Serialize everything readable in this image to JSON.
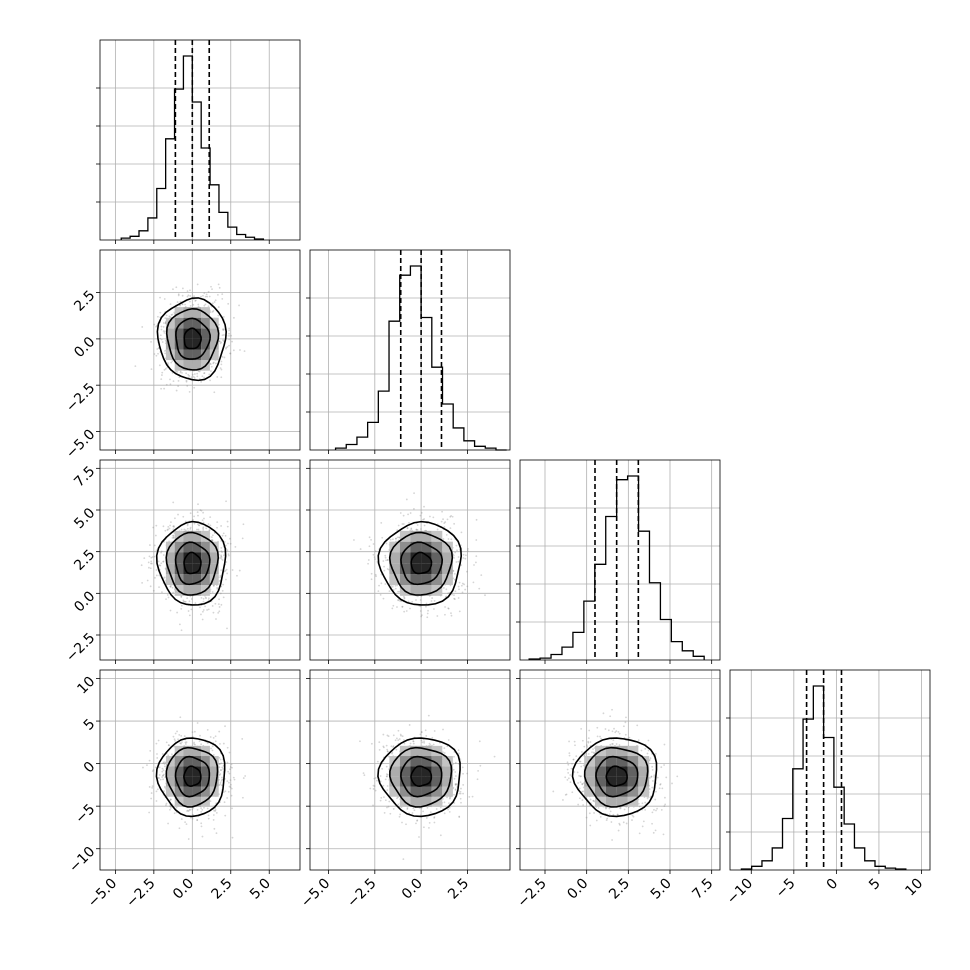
{
  "chart_data": {
    "type": "corner",
    "n_params": 4,
    "params": [
      {
        "mean": 0.0,
        "std": 1.1,
        "xticks": [
          -5.0,
          -2.5,
          0.0,
          2.5,
          5.0
        ],
        "xtick_labels": [
          "−5.0",
          "−2.5",
          "0.0",
          "2.5",
          "5.0"
        ],
        "range": [
          -6.0,
          7.0
        ],
        "quantiles": [
          -1.1,
          0.0,
          1.1
        ]
      },
      {
        "mean": 0.0,
        "std": 1.1,
        "xticks": [
          -5.0,
          -2.5,
          0.0,
          2.5
        ],
        "xtick_labels": [
          "−5.0",
          "−2.5",
          "0.0",
          "2.5"
        ],
        "range": [
          -6.0,
          4.8
        ],
        "quantiles": [
          -1.1,
          0.0,
          1.1
        ]
      },
      {
        "mean": 1.8,
        "std": 1.25,
        "xticks": [
          -2.5,
          0.0,
          2.5,
          5.0,
          7.5
        ],
        "xtick_labels": [
          "−2.5",
          "0.0",
          "2.5",
          "5.0",
          "7.5"
        ],
        "range": [
          -4.0,
          8.0
        ],
        "quantiles": [
          0.5,
          1.8,
          3.1
        ]
      },
      {
        "mean": -1.5,
        "std": 2.3,
        "xticks": [
          -10,
          -5,
          0,
          5,
          10
        ],
        "xtick_labels": [
          "−10",
          "−5",
          "0",
          "5",
          "10"
        ],
        "range": [
          -12.5,
          11.0
        ],
        "quantiles": [
          -3.5,
          -1.5,
          0.6
        ]
      }
    ],
    "ytick_labels": {
      "row1": [
        "−5.0",
        "−2.5",
        "0.0",
        "2.5"
      ],
      "row2": [
        "−2.5",
        "0.0",
        "2.5",
        "5.0",
        "7.5"
      ],
      "row3": [
        "−10",
        "−5",
        "0",
        "5",
        "10"
      ]
    },
    "diag_hist_rel": [
      [
        0.01,
        0.02,
        0.05,
        0.12,
        0.28,
        0.55,
        0.82,
        1.0,
        0.75,
        0.5,
        0.3,
        0.15,
        0.07,
        0.03,
        0.015,
        0.005
      ],
      [
        0.01,
        0.03,
        0.07,
        0.15,
        0.32,
        0.7,
        0.95,
        1.0,
        0.72,
        0.45,
        0.25,
        0.12,
        0.05,
        0.02,
        0.01,
        0.0
      ],
      [
        0.005,
        0.01,
        0.03,
        0.07,
        0.15,
        0.32,
        0.52,
        0.78,
        0.98,
        1.0,
        0.7,
        0.42,
        0.22,
        0.1,
        0.05,
        0.02
      ],
      [
        0.005,
        0.02,
        0.05,
        0.12,
        0.28,
        0.55,
        0.82,
        1.0,
        0.72,
        0.45,
        0.25,
        0.12,
        0.05,
        0.02,
        0.01,
        0.005
      ]
    ],
    "contour_levels_sigma": [
      0.5,
      1.0,
      1.5,
      2.0
    ],
    "grid": true
  }
}
